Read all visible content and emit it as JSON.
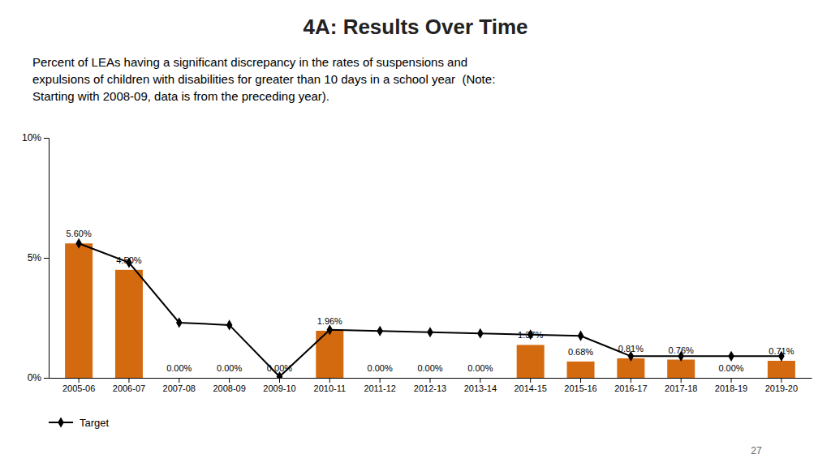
{
  "chart_data": {
    "type": "bar",
    "title": "4A: Results Over Time",
    "subtitle": [
      "Percent of LEAs having a significant discrepancy in the rates of suspensions and",
      "expulsions of children with disabilities for greater than 10 days in a school year  (Note:",
      "Starting with 2008-09, data is from the preceding year)."
    ],
    "annotations": [
      "27"
    ],
    "categories": [
      "2005-06",
      "2006-07",
      "2007-08",
      "2008-09",
      "2009-10",
      "2010-11",
      "2011-12",
      "2012-13",
      "2013-14",
      "2014-15",
      "2015-16",
      "2016-17",
      "2017-18",
      "2018-19",
      "2019-20"
    ],
    "series": [
      {
        "type": "bar",
        "color": "#d46a10",
        "data_labels": true,
        "values": [
          5.6,
          4.5,
          0.0,
          0.0,
          0.0,
          1.96,
          0.0,
          0.0,
          0.0,
          1.37,
          0.68,
          0.81,
          0.76,
          0.0,
          0.71
        ],
        "value_labels": [
          "5.60%",
          "4.50%",
          "0.00%",
          "0.00%",
          "0.00%",
          "1.96%",
          "0.00%",
          "0.00%",
          "0.00%",
          "1.37%",
          "0.68%",
          "0.81%",
          "0.76%",
          "0.00%",
          "0.71%"
        ]
      },
      {
        "name": "Target",
        "type": "line",
        "color": "#000000",
        "marker": "diamond",
        "line_style": "solid",
        "values": [
          5.6,
          4.8,
          2.3,
          2.2,
          0.05,
          2.0,
          1.95,
          1.9,
          1.85,
          1.8,
          1.75,
          0.9,
          0.9,
          0.9,
          0.9
        ]
      }
    ],
    "ylim": [
      0,
      10
    ],
    "yticks": [
      {
        "value": 0,
        "label": "0%"
      },
      {
        "value": 5,
        "label": "5%"
      },
      {
        "value": 10,
        "label": "10%"
      }
    ],
    "grid": false,
    "legend": "bottom"
  }
}
